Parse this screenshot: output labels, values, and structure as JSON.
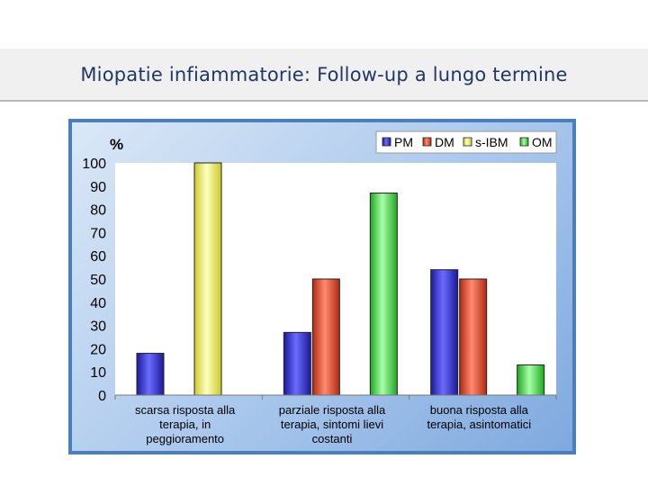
{
  "slide": {
    "title": "Miopatie infiammatorie: Follow-up a lungo termine"
  },
  "colors": {
    "PM": "#3a3ae0",
    "DM": "#f0523a",
    "s-IBM": "#fbfb70",
    "OM": "#5ef05e"
  },
  "chart_data": {
    "type": "bar",
    "ylabel": "%",
    "ylim": [
      0,
      100
    ],
    "yticks": [
      0,
      10,
      20,
      30,
      40,
      50,
      60,
      70,
      80,
      90,
      100
    ],
    "grid": false,
    "legend": "top-right",
    "categories": [
      [
        "scarsa risposta alla",
        "terapia, in",
        "peggioramento"
      ],
      [
        "parziale risposta alla",
        "terapia, sintomi lievi",
        "costanti"
      ],
      [
        "buona risposta alla",
        "terapia, asintomatici"
      ]
    ],
    "series": [
      {
        "name": "PM",
        "values": [
          18,
          27,
          54
        ]
      },
      {
        "name": "DM",
        "values": [
          0,
          50,
          50
        ]
      },
      {
        "name": "s-IBM",
        "values": [
          100,
          0,
          0
        ]
      },
      {
        "name": "OM",
        "values": [
          0,
          87,
          13
        ]
      }
    ]
  }
}
